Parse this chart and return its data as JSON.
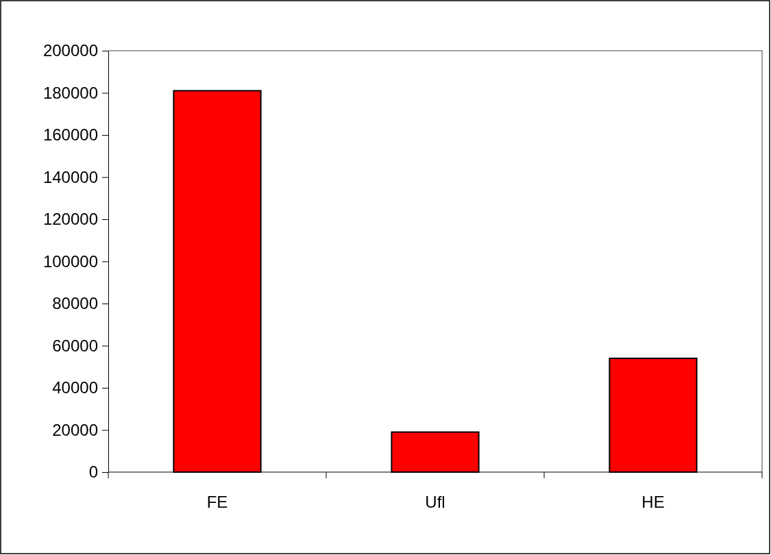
{
  "chart_data": {
    "type": "bar",
    "categories": [
      "FE",
      "Ufl",
      "HE"
    ],
    "values": [
      181000,
      19000,
      54000
    ],
    "color": "#ff0000",
    "ylim": [
      0,
      200000
    ],
    "yticks": [
      0,
      20000,
      40000,
      60000,
      80000,
      100000,
      120000,
      140000,
      160000,
      180000,
      200000
    ],
    "grid": false
  }
}
